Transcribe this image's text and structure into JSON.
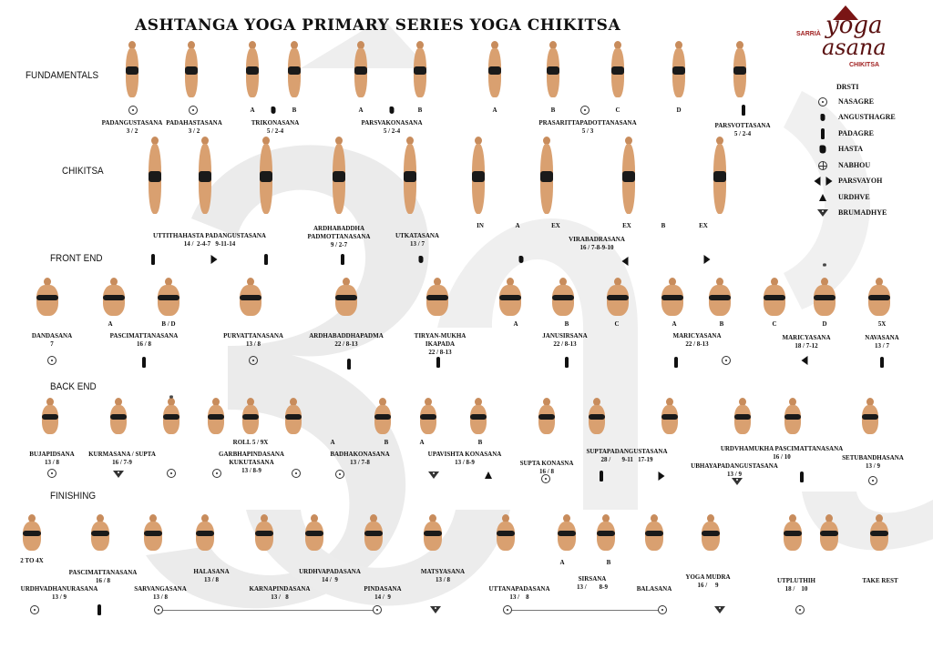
{
  "title": "ASHTANGA YOGA PRIMARY SERIES  YOGA CHIKITSA",
  "logo": {
    "top": "yoga",
    "bottom": "asana",
    "left": "SARRIÀ",
    "right": "CHIKITSA",
    "color": "#5a1010"
  },
  "sections": {
    "fundamentals": "FUNDAMENTALS",
    "chikitsa": "CHIKITSA",
    "front_end": "FRONT END",
    "back_end": "BACK END",
    "finishing": "FINISHING"
  },
  "legend": {
    "title": "DRSTI",
    "items": [
      {
        "icon": "nasagre-dot-icon",
        "label": "NASAGRE"
      },
      {
        "icon": "thumb-icon",
        "label": "ANGUSTHAGRE"
      },
      {
        "icon": "foot-icon",
        "label": "PADAGRE"
      },
      {
        "icon": "hand-icon",
        "label": "HASTA"
      },
      {
        "icon": "navel-cross-icon",
        "label": "NABHOU"
      },
      {
        "icon": "side-arrows-icon",
        "label": "PARSVAYOH"
      },
      {
        "icon": "up-arrow-icon",
        "label": "URDHVE"
      },
      {
        "icon": "brow-triangle-icon",
        "label": "BRUMADHYE"
      }
    ]
  },
  "fundamentals": [
    {
      "name": "PADANGUSTASANA",
      "count": "3 / 2"
    },
    {
      "name": "PADAHASTASANA",
      "count": "3 / 2"
    },
    {
      "name": "TRIKONASANA",
      "count": "5 / 2-4"
    },
    {
      "name": "PARSVAKONASANA",
      "count": "5 / 2-4"
    },
    {
      "name": "PRASARITTAPADOTTANASANA",
      "count": "5 / 3"
    },
    {
      "name": "PARSVOTTASANA",
      "count": "5 / 2-4"
    }
  ],
  "fundamentals_letters": [
    "A",
    "B",
    "A",
    "B",
    "A",
    "B",
    "C",
    "D"
  ],
  "chikitsa": [
    {
      "name": "UTTITHAHASTA PADANGUSTASANA",
      "count": "14 /  2-4-7   9-11-14"
    },
    {
      "name": "ARDHABADDHA",
      "name2": "PADMOTTANASANA",
      "count": "9 / 2-7"
    },
    {
      "name": "UTKATASANA",
      "count": "13 / 7"
    },
    {
      "name": "VIRABADRASANA",
      "count": "16 / 7-8-9-10"
    }
  ],
  "chikitsa_letters": [
    "IN",
    "A",
    "EX",
    "EX",
    "B",
    "EX"
  ],
  "front_end": [
    {
      "name": "DANDASANA",
      "count": "7"
    },
    {
      "name": "PASCIMATTANASANA",
      "count": "16 / 8"
    },
    {
      "name": "PURVATTANASANA",
      "count": "13 / 8"
    },
    {
      "name": "ARDHABADDHAPADMA",
      "count": "22 / 8-13"
    },
    {
      "name": "TIRYAN-MUKHA",
      "name2": "IKAPADA",
      "count": "22 / 8-13"
    },
    {
      "name": "JANUSIRSANA",
      "count": "22 / 8-13"
    },
    {
      "name": "MARICYASANA",
      "count": "22 / 8-13"
    },
    {
      "name": "MARICYASANA",
      "count": "18 / 7-12"
    },
    {
      "name": "NAVASANA",
      "count": "13 / 7"
    }
  ],
  "front_end_letters": [
    "A",
    "B / D",
    "A",
    "B",
    "C",
    "A",
    "B",
    "C",
    "D",
    "5X"
  ],
  "back_end": [
    {
      "name": "BUJAPIDSANA",
      "count": "13 / 8"
    },
    {
      "name": "KURMASANA / SUPTA",
      "count": "16 / 7-9"
    },
    {
      "name": "GARBHAPINDASANA",
      "name2": "KUKUTASANA",
      "count": "13 /  8-9"
    },
    {
      "name": "BADHAKONASANA",
      "count": "13 / 7-8"
    },
    {
      "name": "UPAVISHTA KONASANA",
      "count": "13 /  8-9"
    },
    {
      "name": "SUPTA KONASNA",
      "count": "16 /  8"
    },
    {
      "name": "SUPTAPADANGUSTASANA",
      "count": "28 /       9-11   17-19"
    },
    {
      "name": "URDVHAMUKHA PASCIMATTANASANA",
      "count": "16 /  10"
    },
    {
      "name": "UBHAYAPADANGUSTASANA",
      "count": "13 / 9"
    },
    {
      "name": "SETUBANDHASANA",
      "count": "13 / 9"
    }
  ],
  "back_end_extra": {
    "roll": "ROLL 5 / 9X",
    "letters": [
      "A",
      "B",
      "A",
      "B"
    ]
  },
  "finishing": [
    {
      "name": "URDHVADHANURASANA",
      "count": "13 / 9"
    },
    {
      "name": "PASCIMATTANASANA",
      "count": "16 / 8"
    },
    {
      "name": "SARVANGASANA",
      "count": "13 / 8"
    },
    {
      "name": "HALASANA",
      "count": "13 / 8"
    },
    {
      "name": "KARNAPINDASANA",
      "count": "13 /   8"
    },
    {
      "name": "URDHVAPADASANA",
      "count": "14 /  9"
    },
    {
      "name": "PINDASANA",
      "count": "14 /  9"
    },
    {
      "name": "MATSYASANA",
      "count": "13 / 8"
    },
    {
      "name": "UTTANAPADASANA",
      "count": "13 /    8"
    },
    {
      "name": "SIRSANA",
      "count": "13 /        8-9"
    },
    {
      "name": "BALASANA"
    },
    {
      "name": "YOGA MUDRA",
      "count": "16 /     9"
    },
    {
      "name": "UTPLUTHIH",
      "count": "18 /    10"
    },
    {
      "name": "TAKE REST"
    }
  ],
  "finishing_extra": {
    "reps": "2 TO 4X",
    "letters": [
      "A",
      "B"
    ]
  },
  "asterisk": "*"
}
